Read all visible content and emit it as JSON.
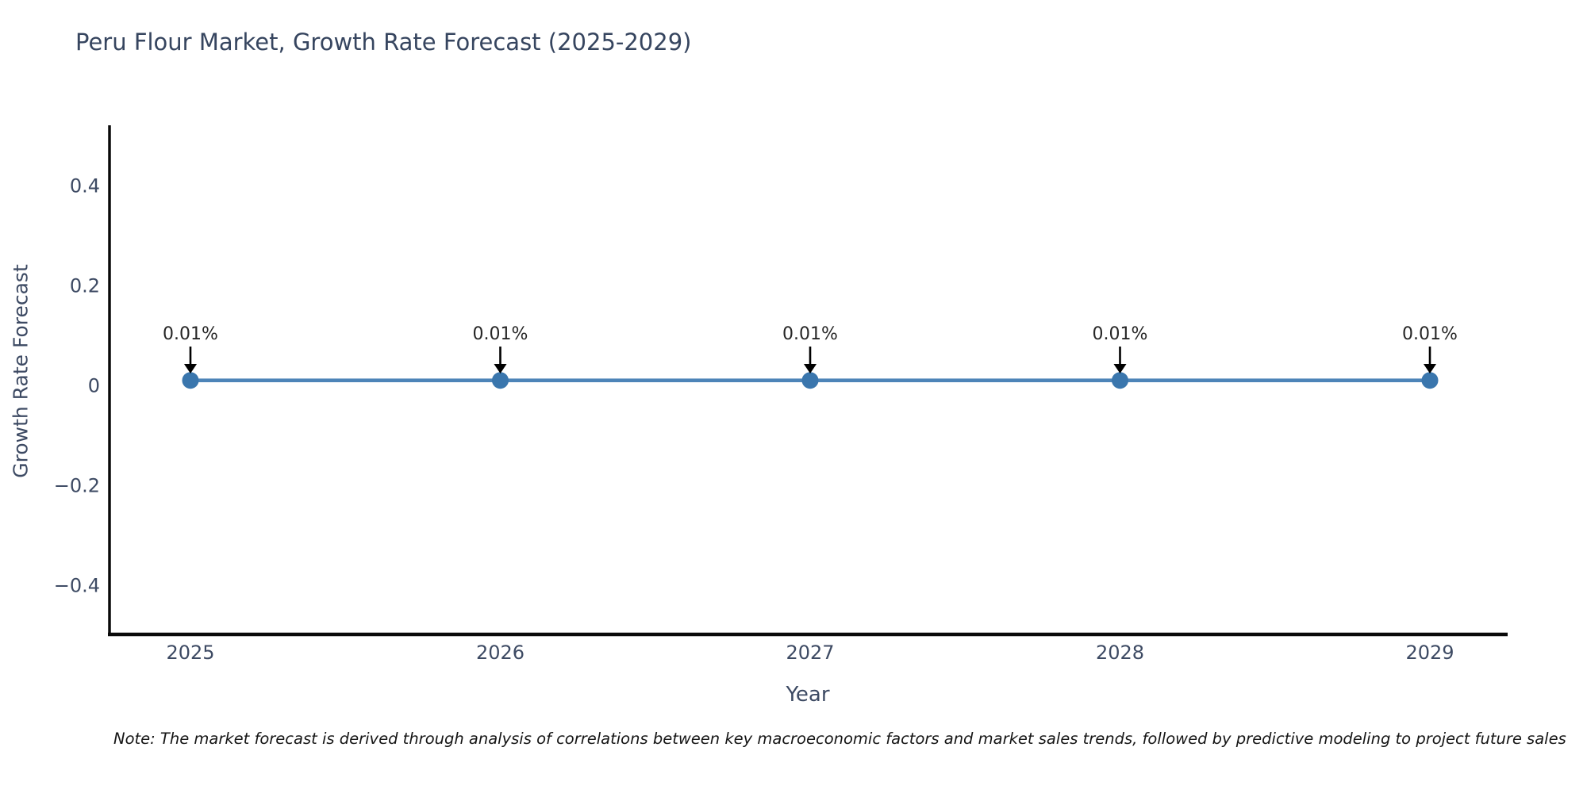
{
  "page": {
    "background": "#ffffff"
  },
  "chart_data": {
    "type": "line",
    "title": "Peru Flour Market, Growth Rate Forecast (2025-2029)",
    "xlabel": "Year",
    "ylabel": "Growth Rate Forecast",
    "x": [
      2025,
      2026,
      2027,
      2028,
      2029
    ],
    "series": [
      {
        "name": "Growth Rate Forecast",
        "values": [
          0.01,
          0.01,
          0.01,
          0.01,
          0.01
        ]
      }
    ],
    "point_labels": [
      "0.01%",
      "0.01%",
      "0.01%",
      "0.01%",
      "0.01%"
    ],
    "x_tick_labels": [
      "2025",
      "2026",
      "2027",
      "2028",
      "2029"
    ],
    "y_ticks": [
      -0.4,
      -0.2,
      0,
      0.2,
      0.4
    ],
    "y_tick_labels": [
      "−0.4",
      "−0.2",
      "0",
      "0.2",
      "0.4"
    ],
    "ylim": [
      -0.5,
      0.52
    ],
    "grid": false,
    "legend": "none",
    "colors": {
      "line": "#4d84b8",
      "marker": "#3a76ad",
      "axis": "#0a0a0a",
      "tick_text": "#3d4a63",
      "title_text": "#36455f",
      "annotation_text": "#262626",
      "arrow": "#000000"
    }
  },
  "note": {
    "text": "Note: The market forecast is derived through analysis of correlations between key macroeconomic factors and market sales trends, followed by predictive modeling to project future sales"
  }
}
